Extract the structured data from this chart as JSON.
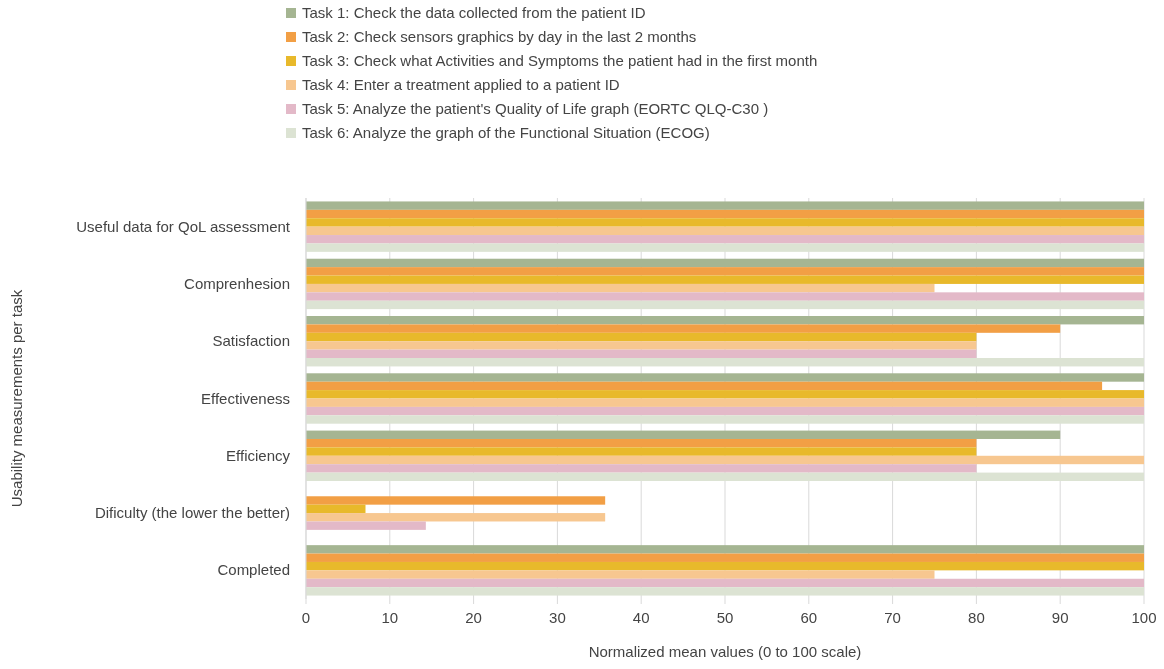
{
  "chart_data": {
    "type": "bar",
    "orientation": "horizontal",
    "xlabel": "Normalized mean values (0 to 100 scale)",
    "ylabel": "Usability measurements per task",
    "categories": [
      "Useful data for QoL assessment",
      "Comprenhesion",
      "Satisfaction",
      "Effectiveness",
      "Efficiency",
      "Dificulty (the lower the better)",
      "Completed"
    ],
    "series": [
      {
        "name": "Task 1: Check the data collected from the patient ID",
        "color": "#a5b592",
        "values": [
          100,
          100,
          100,
          100,
          90,
          0,
          100
        ]
      },
      {
        "name": "Task 2: Check sensors graphics by day in the last 2 months",
        "color": "#f29f45",
        "values": [
          100,
          100,
          90,
          95,
          80,
          35.7,
          100
        ]
      },
      {
        "name": "Task 3: Check what Activities and Symptoms the patient had in the first month",
        "color": "#e8b92b",
        "values": [
          100,
          100,
          80,
          100,
          80,
          7.1,
          100
        ]
      },
      {
        "name": "Task 4: Enter a treatment applied to a patient ID",
        "color": "#f7c790",
        "values": [
          100,
          75,
          80,
          100,
          100,
          35.7,
          75
        ]
      },
      {
        "name": "Task 5: Analyze the patient's Quality of Life graph (EORTC QLQ-C30 )",
        "color": "#e3b9c8",
        "values": [
          100,
          100,
          80,
          100,
          80,
          14.3,
          100
        ]
      },
      {
        "name": "Task 6: Analyze the graph of the Functional Situation (ECOG)",
        "color": "#dce3d3",
        "values": [
          100,
          100,
          100,
          100,
          100,
          0,
          100
        ]
      }
    ],
    "xlim": [
      0,
      100
    ],
    "xticks": [
      0,
      10,
      20,
      30,
      40,
      50,
      60,
      70,
      80,
      90,
      100
    ],
    "grid": "x",
    "legend": "top"
  }
}
